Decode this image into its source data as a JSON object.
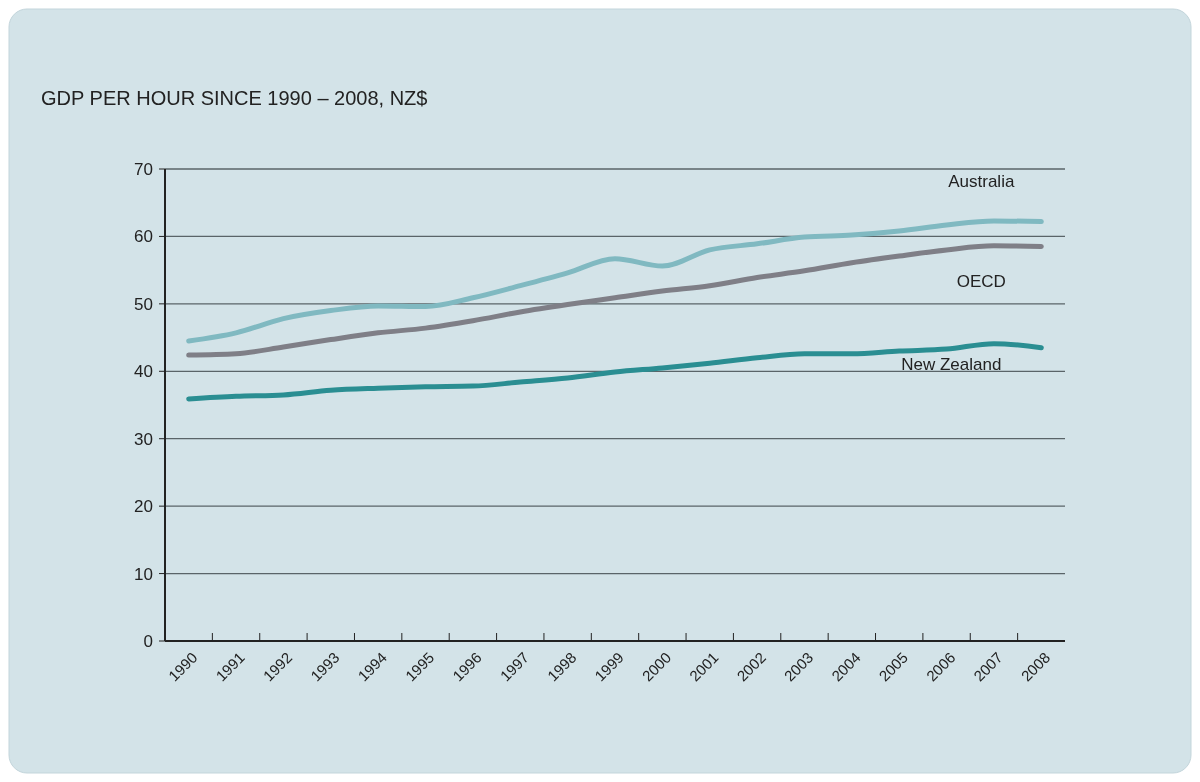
{
  "chart_data": {
    "type": "line",
    "title": "GDP PER HOUR SINCE 1990 – 2008, NZ$",
    "categories": [
      "1990",
      "1991",
      "1992",
      "1993",
      "1994",
      "1995",
      "1996",
      "1997",
      "1998",
      "1999",
      "2000",
      "2001",
      "2002",
      "2003",
      "2004",
      "2005",
      "2006",
      "2007",
      "2008"
    ],
    "series": [
      {
        "name": "Australia",
        "color": "#80b9c1",
        "values": [
          44.5,
          45.7,
          47.8,
          49.0,
          49.7,
          49.6,
          50.9,
          52.7,
          54.6,
          56.7,
          55.6,
          58.0,
          58.9,
          59.9,
          60.2,
          60.8,
          61.7,
          62.3,
          62.2
        ]
      },
      {
        "name": "OECD",
        "color": "#7f7f87",
        "values": [
          42.4,
          42.6,
          43.6,
          44.7,
          45.7,
          46.4,
          47.5,
          48.8,
          49.9,
          50.9,
          51.9,
          52.7,
          53.9,
          54.9,
          56.1,
          57.1,
          58.0,
          58.6,
          58.5
        ]
      },
      {
        "name": "New Zealand",
        "color": "#2a8e92",
        "values": [
          35.9,
          36.3,
          36.5,
          37.2,
          37.5,
          37.7,
          37.8,
          38.4,
          39.0,
          39.9,
          40.5,
          41.2,
          42.0,
          42.6,
          42.6,
          43.0,
          43.3,
          44.1,
          43.5
        ]
      }
    ],
    "ylim": [
      0,
      70
    ],
    "yticks": [
      0,
      10,
      20,
      30,
      40,
      50,
      60,
      70
    ],
    "grid": "y",
    "legend": false,
    "marker": "none",
    "line_style": "solid"
  }
}
